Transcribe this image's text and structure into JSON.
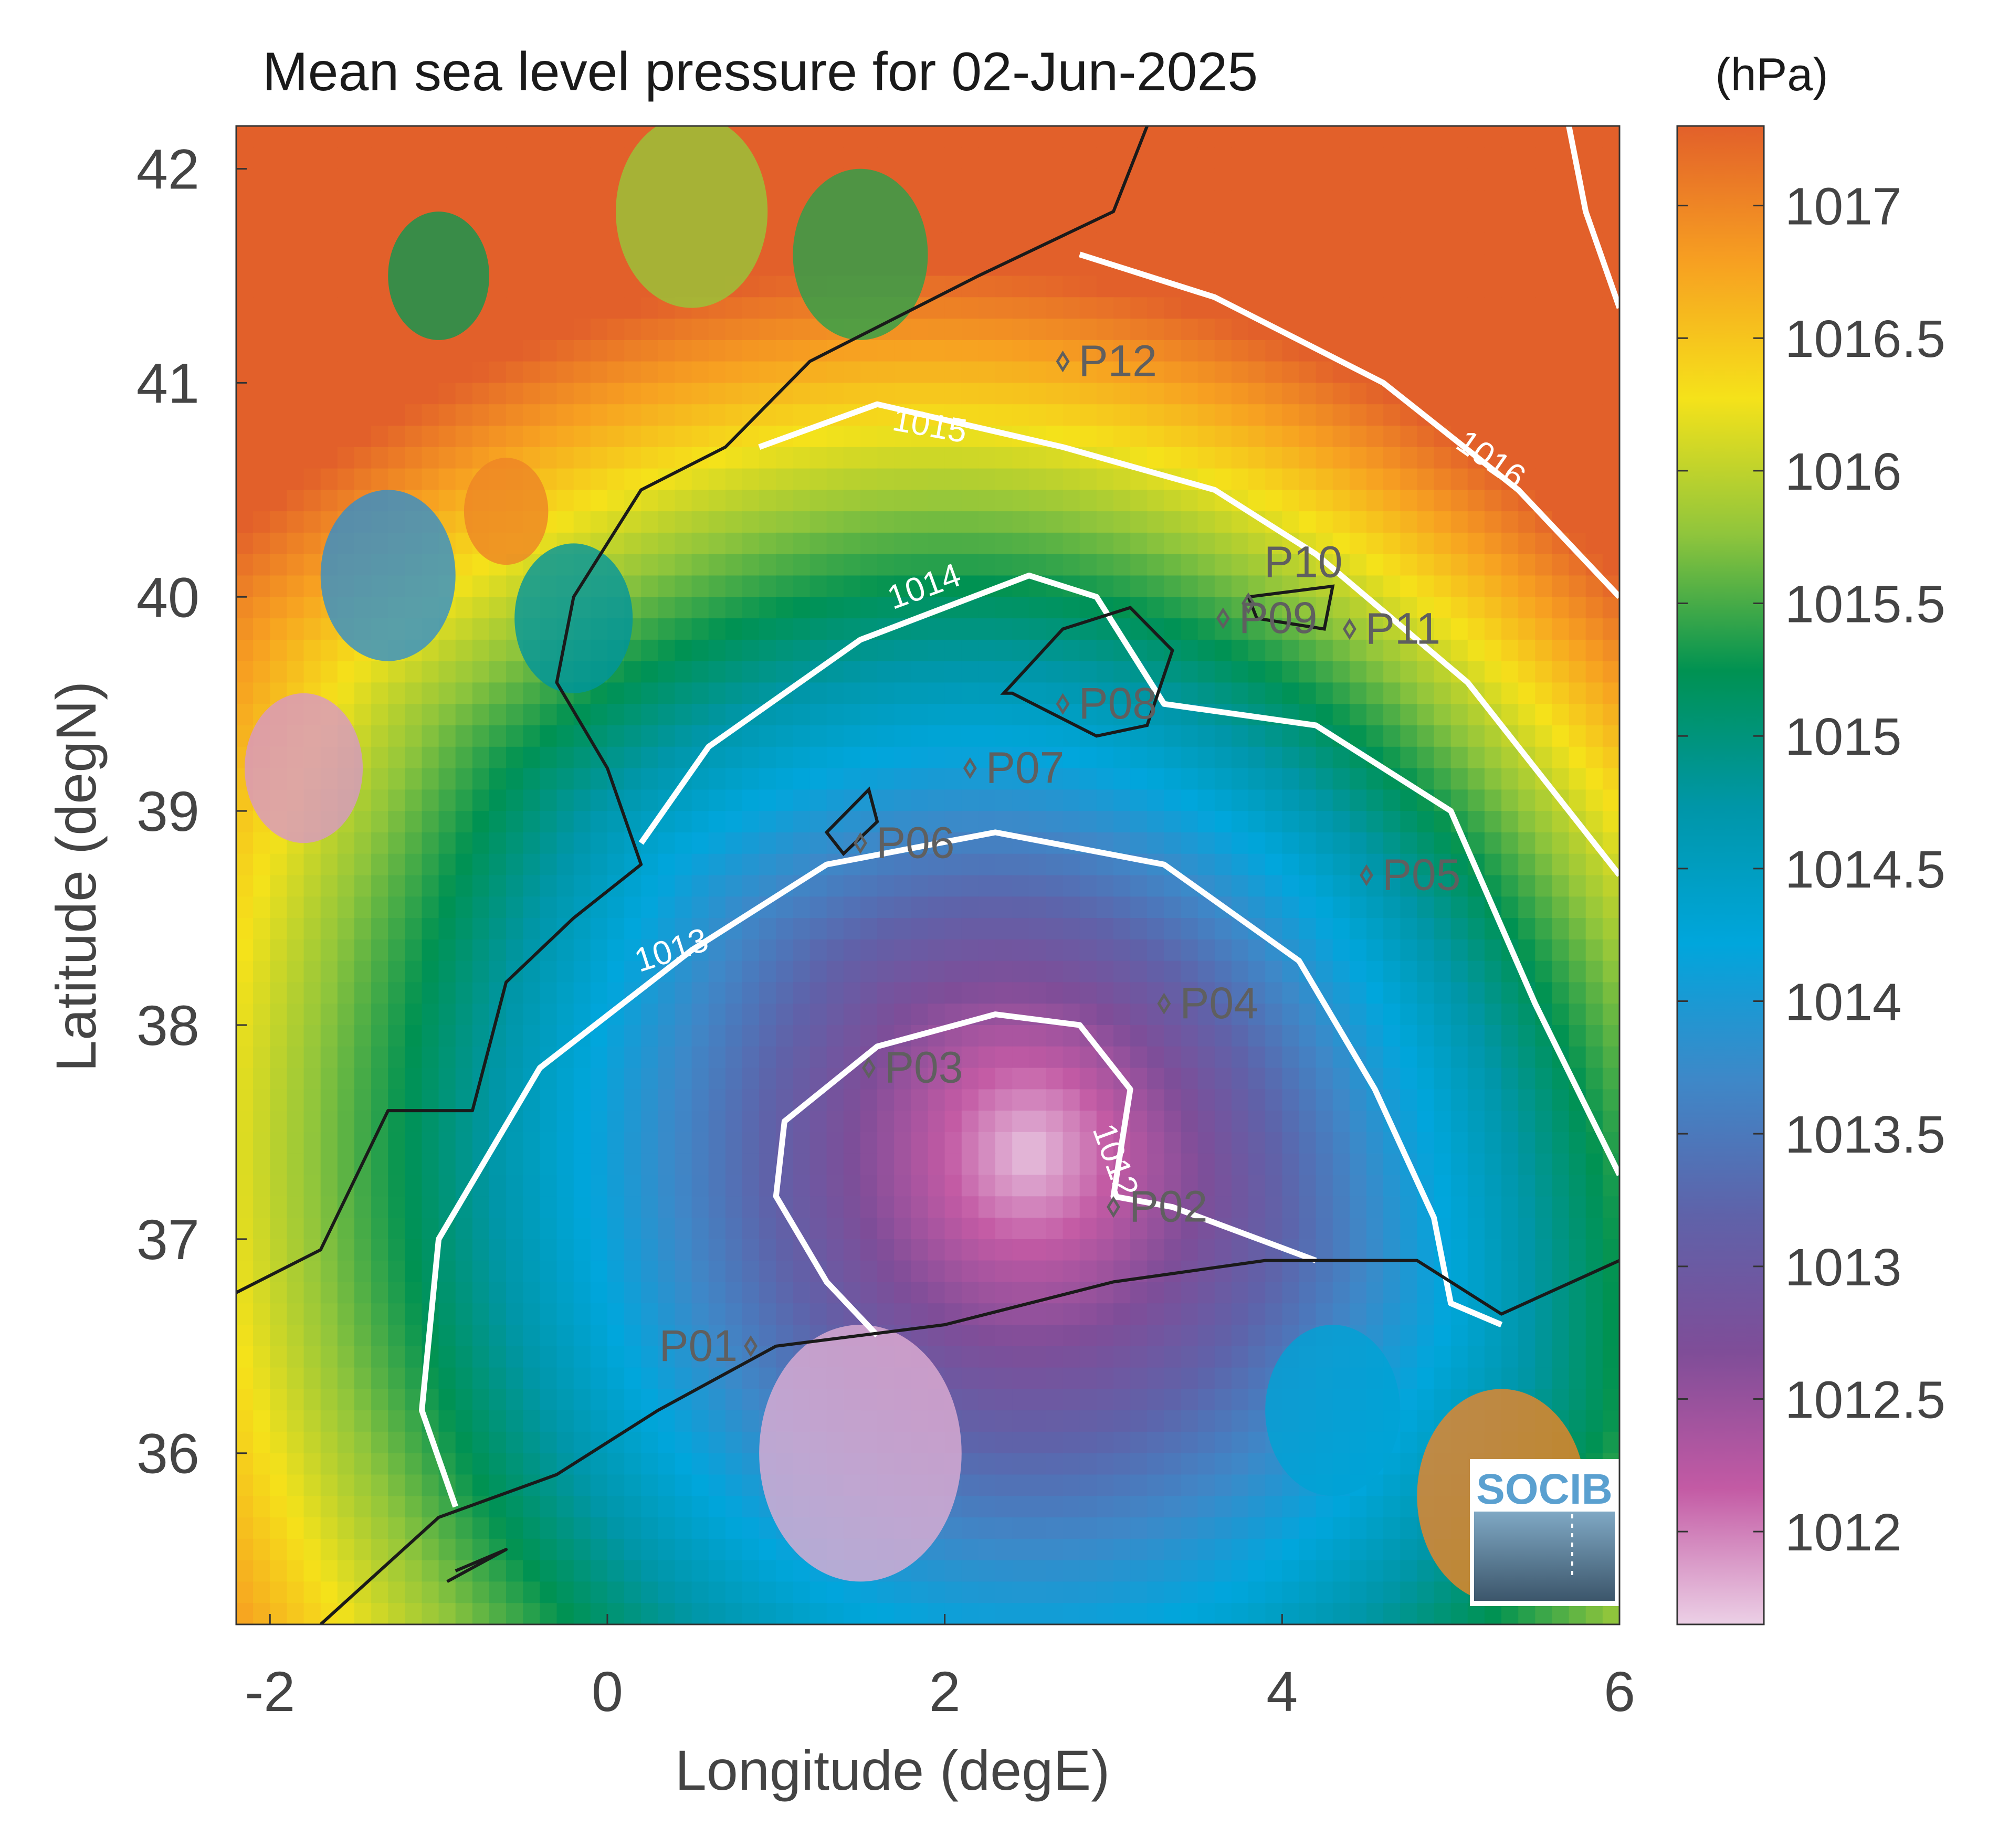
{
  "title": "Mean sea level pressure for 02-Jun-2025",
  "xlabel": "Longitude (degE)",
  "ylabel": "Latitude (degN)",
  "colorbar": {
    "unit": "(hPa)",
    "range": [
      1011.65,
      1017.3
    ],
    "ticks": [
      "1012",
      "1012.5",
      "1013",
      "1013.5",
      "1014",
      "1014.5",
      "1015",
      "1015.5",
      "1016",
      "1016.5",
      "1017"
    ],
    "colormap": [
      "#ecd0e6",
      "#c35aa4",
      "#7f4d98",
      "#5f62a9",
      "#3e88c8",
      "#00a6dc",
      "#0096a8",
      "#009252",
      "#8fc53c",
      "#f5e21a",
      "#f7a021",
      "#e2602a"
    ]
  },
  "logo": {
    "text": "SOCIB",
    "color": "#5aa0d0"
  },
  "map": {
    "xlim": [
      -2.2,
      6.0
    ],
    "ylim": [
      35.2,
      42.2
    ],
    "xticks": [
      "-2",
      "0",
      "2",
      "4",
      "6"
    ],
    "yticks": [
      "36",
      "37",
      "38",
      "39",
      "40",
      "41",
      "42"
    ],
    "contour_levels": [
      "1012",
      "1013",
      "1014",
      "1015",
      "1016"
    ],
    "contour_color": "#ffffff",
    "coastline_color": "#1a1a1a",
    "field_description": "pressure low centered near 2.5E 37.4N (about 1011.7 hPa) rising to about 1017.3 hPa in the northeast corner"
  },
  "stations": [
    {
      "label": "P01",
      "lon": 0.85,
      "lat": 36.5
    },
    {
      "label": "P02",
      "lon": 3.0,
      "lat": 37.15
    },
    {
      "label": "P03",
      "lon": 1.55,
      "lat": 37.8
    },
    {
      "label": "P04",
      "lon": 3.3,
      "lat": 38.1
    },
    {
      "label": "P05",
      "lon": 4.5,
      "lat": 38.7
    },
    {
      "label": "P06",
      "lon": 1.5,
      "lat": 38.85
    },
    {
      "label": "P07",
      "lon": 2.15,
      "lat": 39.2
    },
    {
      "label": "P08",
      "lon": 2.7,
      "lat": 39.5
    },
    {
      "label": "P09",
      "lon": 3.65,
      "lat": 39.9
    },
    {
      "label": "P10",
      "lon": 3.8,
      "lat": 39.97
    },
    {
      "label": "P11",
      "lon": 4.4,
      "lat": 39.85
    },
    {
      "label": "P12",
      "lon": 2.7,
      "lat": 41.1
    }
  ]
}
